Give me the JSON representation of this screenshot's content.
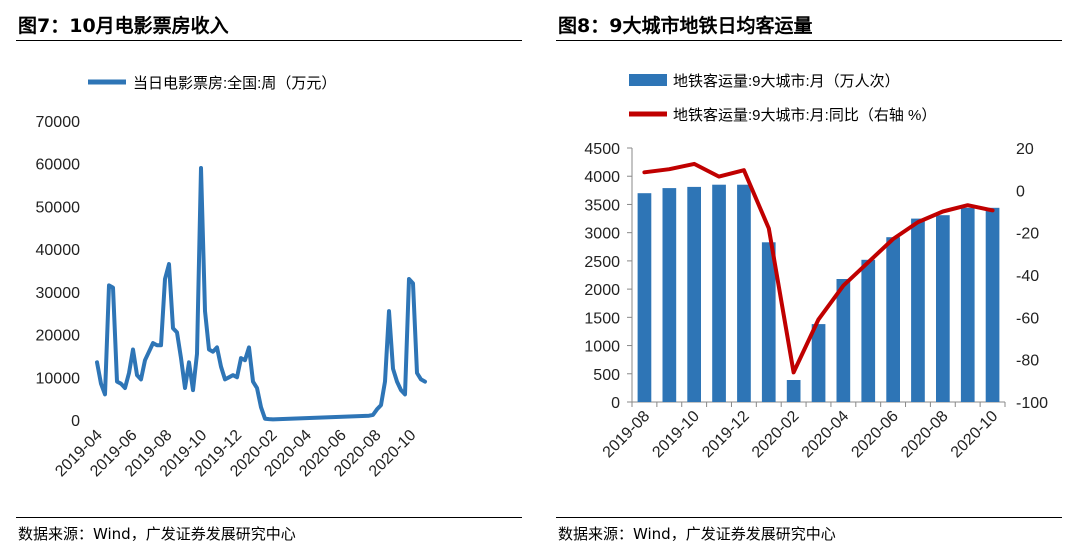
{
  "left": {
    "title": "图7：10月电影票房收入",
    "source": "数据来源：Wind，广发证券发展研究中心"
  },
  "right": {
    "title": "图8：9大城市地铁日均客运量",
    "source": "数据来源：Wind，广发证券发展研究中心"
  },
  "chart_data": [
    {
      "type": "line",
      "title": "",
      "series": [
        {
          "name": "当日电影票房:全国:周（万元）",
          "color": "#2e75b6",
          "x": [
            "2019-04-01",
            "2019-04-08",
            "2019-04-15",
            "2019-04-22",
            "2019-04-29",
            "2019-05-06",
            "2019-05-13",
            "2019-05-20",
            "2019-05-27",
            "2019-06-03",
            "2019-06-10",
            "2019-06-17",
            "2019-06-24",
            "2019-07-01",
            "2019-07-08",
            "2019-07-15",
            "2019-07-22",
            "2019-07-29",
            "2019-08-05",
            "2019-08-12",
            "2019-08-19",
            "2019-08-26",
            "2019-09-02",
            "2019-09-09",
            "2019-09-16",
            "2019-09-23",
            "2019-09-30",
            "2019-10-07",
            "2019-10-14",
            "2019-10-21",
            "2019-10-28",
            "2019-11-04",
            "2019-11-11",
            "2019-11-18",
            "2019-11-25",
            "2019-12-02",
            "2019-12-09",
            "2019-12-16",
            "2019-12-23",
            "2019-12-30",
            "2020-01-06",
            "2020-01-13",
            "2020-01-20",
            "2020-01-27",
            "2020-02-03",
            "2020-07-20",
            "2020-07-27",
            "2020-08-03",
            "2020-08-10",
            "2020-08-17",
            "2020-08-24",
            "2020-08-31",
            "2020-09-07",
            "2020-09-14",
            "2020-09-21",
            "2020-09-28",
            "2020-10-05",
            "2020-10-12",
            "2020-10-19",
            "2020-10-26"
          ],
          "values": [
            13500,
            8500,
            6000,
            31500,
            31000,
            9000,
            8500,
            7500,
            11000,
            16500,
            10500,
            9500,
            14000,
            16000,
            18000,
            17500,
            17500,
            33000,
            36500,
            21500,
            20500,
            14500,
            7500,
            13500,
            7000,
            15500,
            59000,
            25500,
            16500,
            16000,
            17000,
            12500,
            9500,
            10000,
            10500,
            10000,
            14500,
            14000,
            17000,
            9000,
            7500,
            3000,
            300,
            200,
            150,
            1000,
            1200,
            2500,
            3500,
            9000,
            25500,
            12000,
            9000,
            7000,
            6000,
            33000,
            32000,
            11000,
            9500,
            9000
          ]
        }
      ],
      "xlabel": "",
      "ylabel": "",
      "ylim": [
        0,
        70000
      ],
      "yticks": [
        "0",
        "10000",
        "20000",
        "30000",
        "40000",
        "50000",
        "60000",
        "70000"
      ],
      "xticks": [
        "2019-04",
        "2019-06",
        "2019-08",
        "2019-10",
        "2019-12",
        "2020-02",
        "2020-04",
        "2020-06",
        "2020-08",
        "2020-10"
      ],
      "grid": false,
      "legend": "top"
    },
    {
      "type": "bar",
      "title": "",
      "categories": [
        "2019-08",
        "2019-09",
        "2019-10",
        "2019-11",
        "2019-12",
        "2020-01",
        "2020-02",
        "2020-03",
        "2020-04",
        "2020-05",
        "2020-06",
        "2020-07",
        "2020-08",
        "2020-09",
        "2020-10"
      ],
      "series": [
        {
          "name": "地铁客运量:9大城市:月（万人次）",
          "type": "bar",
          "axis": "left",
          "color": "#2e75b6",
          "values": [
            3700,
            3790,
            3810,
            3850,
            3850,
            2830,
            390,
            1380,
            2180,
            2520,
            2920,
            3250,
            3310,
            3440,
            3440
          ]
        },
        {
          "name": "地铁客运量:9大城市:月:同比（右轴 %）",
          "type": "line",
          "axis": "right",
          "color": "#c00000",
          "values": [
            8.5,
            10,
            12.5,
            6.5,
            9.5,
            -18,
            -86,
            -61,
            -45,
            -34,
            -23,
            -15,
            -10,
            -7,
            -9.5
          ]
        }
      ],
      "ylim": [
        0,
        4500
      ],
      "yticks": [
        "0",
        "500",
        "1000",
        "1500",
        "2000",
        "2500",
        "3000",
        "3500",
        "4000",
        "4500"
      ],
      "y2lim": [
        -100,
        20
      ],
      "y2ticks": [
        "20",
        "0",
        "-20",
        "-40",
        "-60",
        "-80",
        "-100"
      ],
      "xticks": [
        "2019-08",
        "2019-10",
        "2019-12",
        "2020-02",
        "2020-04",
        "2020-06",
        "2020-08",
        "2020-10"
      ],
      "grid": false,
      "legend": "top"
    }
  ]
}
